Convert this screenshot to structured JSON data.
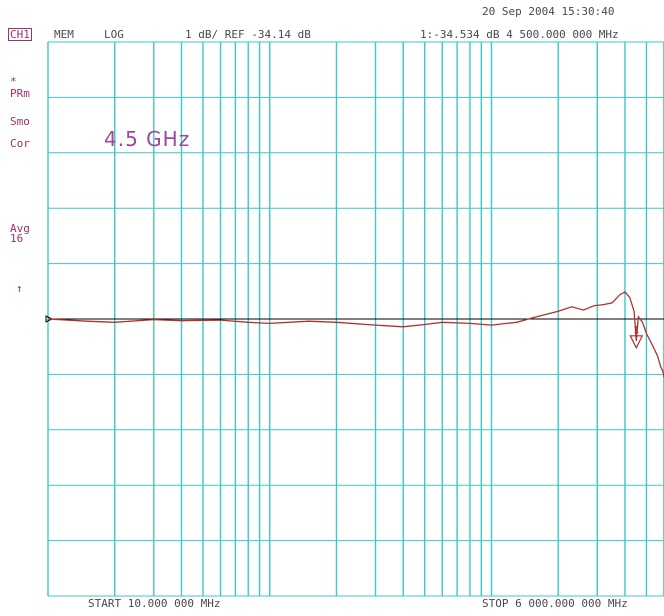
{
  "header": {
    "date_time": "20 Sep 2004  15:30:40",
    "channel": "CH1",
    "mem": "MEM",
    "format": "LOG",
    "scale_ref": "1 dB/ REF -34.14 dB",
    "marker_readout": "1:-34.534 dB   4 500.000 000 MHz"
  },
  "status": {
    "star": "*",
    "prm": "PRm",
    "smo": "Smo",
    "cor": "Cor",
    "avg": "Avg",
    "avg_count": "16",
    "ref_arrow": "↑"
  },
  "annotation": "4.5 GHz",
  "footer": {
    "start": "START  10.000 000 MHz",
    "stop": "STOP 6 000.000 000 MHz"
  },
  "colors": {
    "grid": "#3cc8c8",
    "trace": "#b03030",
    "reference": "#000000",
    "marker": "#b03030"
  },
  "chart_data": {
    "type": "line",
    "title": "",
    "xlabel": "",
    "ylabel": "",
    "x_scale": "log",
    "xlim": [
      10,
      6000
    ],
    "ylim": [
      -39.14,
      -29.14
    ],
    "ref_level": -34.14,
    "grid": true,
    "series": [
      {
        "x": [
          10,
          15,
          20,
          30,
          40,
          60,
          80,
          100,
          150,
          200,
          300,
          400,
          500,
          600,
          800,
          1000,
          1300,
          1600,
          2000,
          2300,
          2600,
          2900,
          3200,
          3500,
          3800,
          4000,
          4200,
          4400,
          4500,
          4600,
          4800,
          5000,
          5300,
          5600,
          5800,
          5950,
          6000
        ],
        "y": [
          -34.14,
          -34.18,
          -34.2,
          -34.15,
          -34.17,
          -34.16,
          -34.2,
          -34.22,
          -34.18,
          -34.2,
          -34.25,
          -34.28,
          -34.24,
          -34.2,
          -34.22,
          -34.25,
          -34.2,
          -34.1,
          -34.0,
          -33.92,
          -33.98,
          -33.9,
          -33.88,
          -33.85,
          -33.7,
          -33.65,
          -33.75,
          -34.0,
          -34.534,
          -34.1,
          -34.2,
          -34.4,
          -34.6,
          -34.8,
          -35.0,
          -35.1,
          -35.2
        ]
      }
    ],
    "markers": [
      {
        "label": "1",
        "x": 4500,
        "y": -34.534
      }
    ]
  }
}
